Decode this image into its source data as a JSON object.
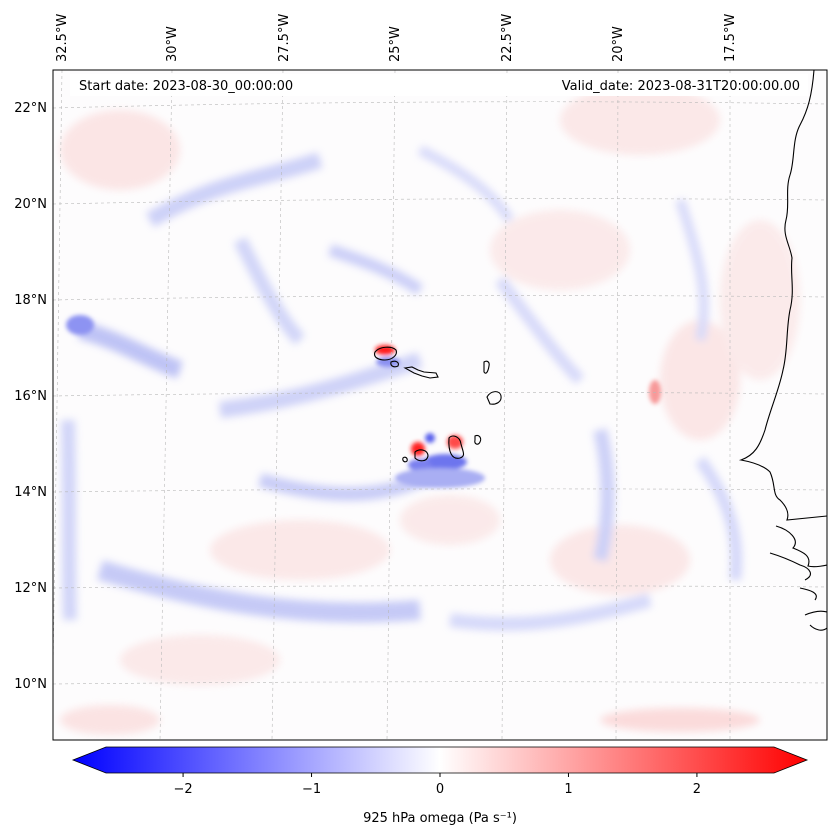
{
  "header": {
    "start_date": "Start date: 2023-08-30_00:00:00",
    "valid_date": "Valid_date: 2023-08-31T20:00:00.00"
  },
  "map": {
    "projection": "lambert-conic",
    "extent": {
      "lon_min": -33.0,
      "lon_max": -16.0,
      "lat_min": 9.0,
      "lat_max": 22.8
    },
    "gridlines": "dashed-gray",
    "coastlines": true
  },
  "lon_ticks": [
    {
      "value": -32.5,
      "label": "32.5°W"
    },
    {
      "value": -30.0,
      "label": "30°W"
    },
    {
      "value": -27.5,
      "label": "27.5°W"
    },
    {
      "value": -25.0,
      "label": "25°W"
    },
    {
      "value": -22.5,
      "label": "22.5°W"
    },
    {
      "value": -20.0,
      "label": "20°W"
    },
    {
      "value": -17.5,
      "label": "17.5°W"
    }
  ],
  "lat_ticks": [
    {
      "value": 22,
      "label": "22°N"
    },
    {
      "value": 20,
      "label": "20°N"
    },
    {
      "value": 18,
      "label": "18°N"
    },
    {
      "value": 16,
      "label": "16°N"
    },
    {
      "value": 14,
      "label": "14°N"
    },
    {
      "value": 12,
      "label": "12°N"
    },
    {
      "value": 10,
      "label": "10°N"
    }
  ],
  "colorbar": {
    "label": "925 hPa omega (Pa s⁻¹)",
    "min": -2.6,
    "max": 2.6,
    "extend": "both",
    "colormap": "bwr",
    "color_low": "#0000ff",
    "color_mid": "#ffffff",
    "color_high": "#ff0000",
    "ticks": [
      {
        "value": -2,
        "label": "−2"
      },
      {
        "value": -1,
        "label": "−1"
      },
      {
        "value": 0,
        "label": "0"
      },
      {
        "value": 1,
        "label": "1"
      },
      {
        "value": 2,
        "label": "2"
      }
    ]
  },
  "field_features": [
    {
      "name": "cape-verde-north-updraft",
      "lon": -24.9,
      "lat": 16.9,
      "omega": 2.3
    },
    {
      "name": "cape-verde-north-downdraft",
      "lon": -24.9,
      "lat": 16.7,
      "omega": -1.2
    },
    {
      "name": "cape-verde-south-updraft-west",
      "lon": -24.4,
      "lat": 14.95,
      "omega": 2.4
    },
    {
      "name": "cape-verde-south-updraft-east",
      "lon": -23.6,
      "lat": 15.0,
      "omega": 1.8
    },
    {
      "name": "cape-verde-south-downdraft",
      "lon": -23.7,
      "lat": 14.6,
      "omega": -1.4
    },
    {
      "name": "cape-verde-south-downdraft-2",
      "lon": -24.5,
      "lat": 14.55,
      "omega": -1.0
    }
  ]
}
